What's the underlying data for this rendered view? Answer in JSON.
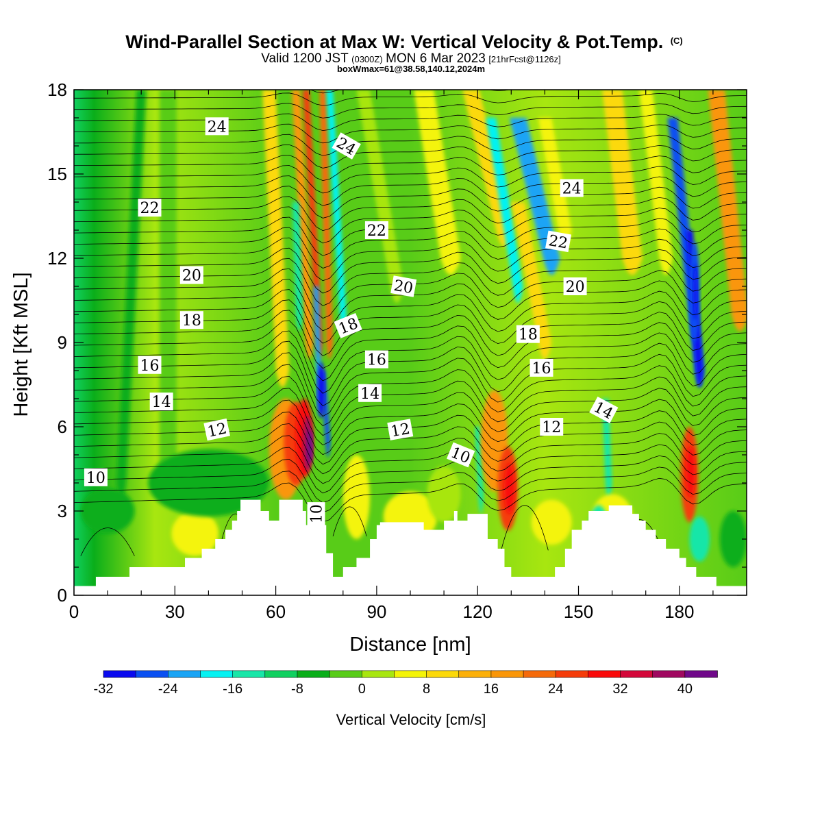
{
  "title": {
    "main": "Wind-Parallel Section at Max W: Vertical Velocity & Pot.Temp.",
    "copyright": "(C)",
    "valid_prefix": "Valid 1200 JST",
    "utc": "(0300Z)",
    "date": "MON 6 Mar 2023",
    "forecast": "[21hrFcst@1126z]",
    "box": "boxWmax=61@38.58,140.12,2024m"
  },
  "chart_data": {
    "type": "heatmap",
    "xlabel": "Distance [nm]",
    "ylabel": "Height [Kft MSL]",
    "xlim": [
      0,
      200
    ],
    "ylim": [
      0,
      18
    ],
    "x_ticks": [
      0,
      30,
      60,
      90,
      120,
      150,
      180
    ],
    "y_ticks": [
      0,
      3,
      6,
      9,
      12,
      15,
      18
    ],
    "colorbar": {
      "title": "Vertical Velocity [cm/s]",
      "levels": [
        -32,
        -28,
        -24,
        -20,
        -16,
        -12,
        -8,
        -4,
        0,
        4,
        8,
        12,
        16,
        20,
        24,
        28,
        32,
        36,
        40,
        44
      ],
      "tick_labels": [
        "-32",
        "-24",
        "-16",
        "-8",
        "0",
        "8",
        "16",
        "24",
        "32",
        "40"
      ],
      "colors": [
        "#0a0aef",
        "#0a50f2",
        "#1aa4f5",
        "#05f2f2",
        "#18e6a8",
        "#10d060",
        "#0aae1a",
        "#58cc18",
        "#a8e610",
        "#f4f407",
        "#fcd90a",
        "#fcb00a",
        "#fa9608",
        "#f56a0a",
        "#f53c0a",
        "#fa0a0a",
        "#d4083a",
        "#a00860",
        "#70088a"
      ]
    },
    "series": [
      {
        "name": "",
        "x": [
          0,
          60,
          70,
          90,
          120,
          150,
          180,
          200
        ],
        "y": [
          0,
          0,
          0,
          0,
          0,
          0,
          0,
          0
        ]
      }
    ],
    "theta_labels": [
      {
        "text": "24",
        "x": 42.5,
        "y": 16.7,
        "rot": 0
      },
      {
        "text": "24",
        "x": 81,
        "y": 16.0,
        "rot": 30
      },
      {
        "text": "24",
        "x": 148,
        "y": 14.5,
        "rot": 0
      },
      {
        "text": "22",
        "x": 22.5,
        "y": 13.8,
        "rot": 0
      },
      {
        "text": "22",
        "x": 90,
        "y": 13.0,
        "rot": 0
      },
      {
        "text": "22",
        "x": 144,
        "y": 12.6,
        "rot": 10
      },
      {
        "text": "20",
        "x": 35,
        "y": 11.4,
        "rot": 0
      },
      {
        "text": "20",
        "x": 98,
        "y": 11.0,
        "rot": 10
      },
      {
        "text": "20",
        "x": 149,
        "y": 11.0,
        "rot": 0
      },
      {
        "text": "18",
        "x": 35,
        "y": 9.8,
        "rot": 0
      },
      {
        "text": "18",
        "x": 81.5,
        "y": 9.6,
        "rot": -22
      },
      {
        "text": "18",
        "x": 135,
        "y": 9.3,
        "rot": 0
      },
      {
        "text": "16",
        "x": 22.5,
        "y": 8.2,
        "rot": 0
      },
      {
        "text": "16",
        "x": 90,
        "y": 8.4,
        "rot": 0
      },
      {
        "text": "16",
        "x": 139,
        "y": 8.1,
        "rot": 0
      },
      {
        "text": "14",
        "x": 26,
        "y": 6.9,
        "rot": 0
      },
      {
        "text": "14",
        "x": 88,
        "y": 7.2,
        "rot": 0
      },
      {
        "text": "14",
        "x": 157.5,
        "y": 6.6,
        "rot": 28
      },
      {
        "text": "12",
        "x": 42.5,
        "y": 5.9,
        "rot": -12
      },
      {
        "text": "12",
        "x": 97,
        "y": 5.9,
        "rot": -10
      },
      {
        "text": "12",
        "x": 142,
        "y": 6.0,
        "rot": 0
      },
      {
        "text": "10",
        "x": 6.5,
        "y": 4.2,
        "rot": 0
      },
      {
        "text": "10",
        "x": 115,
        "y": 5.0,
        "rot": 22
      },
      {
        "text": "10",
        "x": 72,
        "y": 2.9,
        "rot": -90
      }
    ]
  }
}
